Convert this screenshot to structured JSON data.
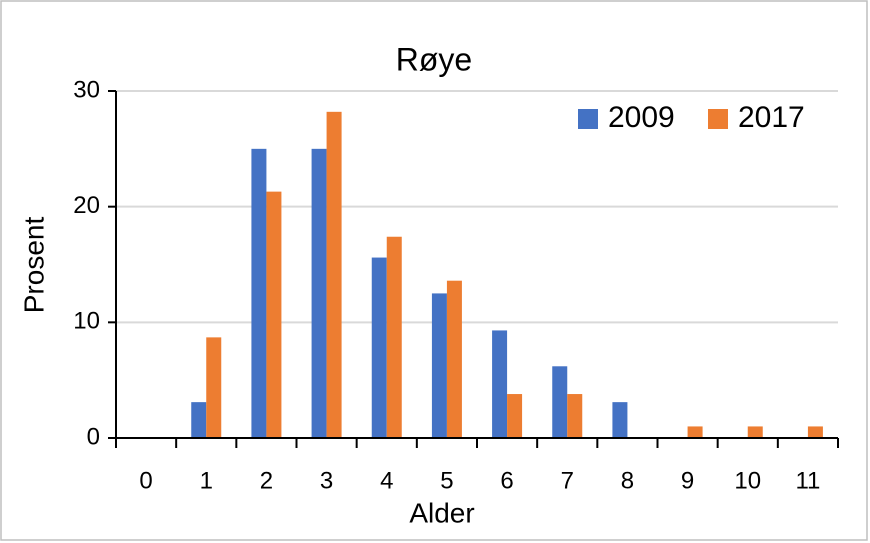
{
  "chart_data": {
    "type": "bar",
    "title": "Røye",
    "x_label": "Alder",
    "y_label": "Prosent",
    "categories": [
      "0",
      "1",
      "2",
      "3",
      "4",
      "5",
      "6",
      "7",
      "8",
      "9",
      "10",
      "11"
    ],
    "series": [
      {
        "name": "2009",
        "color": "#4472c4",
        "values": [
          0,
          3.1,
          25,
          25,
          15.6,
          12.5,
          9.3,
          6.2,
          3.1,
          0,
          0,
          0
        ]
      },
      {
        "name": "2017",
        "color": "#ed7d31",
        "values": [
          0,
          8.7,
          21.3,
          28.2,
          17.4,
          13.6,
          3.8,
          3.8,
          0,
          1,
          1,
          1
        ]
      }
    ],
    "ylim": [
      0,
      30
    ],
    "yticks": [
      0,
      10,
      20,
      30
    ],
    "grid": true,
    "legend": "upper right"
  }
}
